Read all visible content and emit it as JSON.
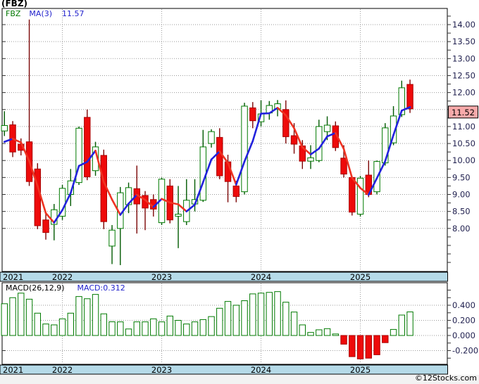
{
  "title": "(FBZ)",
  "legend": {
    "symbol": "FBZ",
    "ma_label": "MA(3)",
    "ma_value": "11.57"
  },
  "price_axis": {
    "labels": [
      "14.00",
      "13.50",
      "13.00",
      "12.50",
      "12.00",
      "11.50",
      "11.00",
      "10.50",
      "10.00",
      "9.50",
      "9.00",
      "8.50",
      "8.00"
    ],
    "last_price": "11.52"
  },
  "macd_panel": {
    "params_label": "MACD(26,12,9)",
    "value_label": "MACD:0.312",
    "axis_labels": [
      "0.400",
      "0.200",
      "0.000",
      "-0.200"
    ]
  },
  "x_axis": {
    "years": [
      "2021",
      "2022",
      "2023",
      "2024",
      "2025"
    ]
  },
  "watermark": "©12Stocks.com",
  "colors": {
    "up_body": "#ffffff",
    "up_border": "#007a00",
    "up_wick": "#005a00",
    "down_body": "#ee0a0a",
    "down_border": "#aa0000",
    "down_wick": "#7c0606",
    "ma_up": "#2222dd",
    "ma_down": "#ee3322",
    "band": "#b5dae8",
    "grid": "#9a9a9a",
    "frame": "#000000",
    "axis_text": "#1f1f4e",
    "year_text": "#000000",
    "last_price_fill": "#f8aaaa",
    "bottom_strip": "#f2f2f2",
    "macd_pos_body": "#ffffff",
    "macd_pos_border": "#007a00",
    "macd_neg_body": "#ee0a0a",
    "macd_neg_border": "#aa0000"
  },
  "chart_data": [
    {
      "type": "candlestick",
      "title": "FBZ monthly candlesticks with MA(3)",
      "timeframe": "monthly",
      "candle_format": [
        "month",
        "open",
        "high",
        "low",
        "close"
      ],
      "ylim": [
        6.9,
        14.45
      ],
      "y_tick_step": 0.5,
      "grid": true,
      "legend_position": "top-left",
      "candles": [
        [
          "2021-06",
          10.87,
          11.45,
          10.72,
          11.03
        ],
        [
          "2021-07",
          11.05,
          11.16,
          10.1,
          10.25
        ],
        [
          "2021-08",
          10.48,
          10.65,
          10.15,
          10.3
        ],
        [
          "2021-09",
          10.55,
          14.15,
          9.25,
          9.38
        ],
        [
          "2021-10",
          9.75,
          9.92,
          7.98,
          8.08
        ],
        [
          "2021-11",
          8.25,
          8.45,
          7.67,
          7.88
        ],
        [
          "2021-12",
          8.12,
          8.72,
          7.65,
          8.55
        ],
        [
          "2022-01",
          8.36,
          9.28,
          8.25,
          9.18
        ],
        [
          "2022-02",
          9.0,
          9.75,
          8.66,
          9.4
        ],
        [
          "2022-03",
          9.35,
          11.0,
          9.28,
          10.95
        ],
        [
          "2022-04",
          11.27,
          11.5,
          9.42,
          9.52
        ],
        [
          "2022-05",
          9.7,
          10.55,
          9.55,
          10.4
        ],
        [
          "2022-06",
          10.15,
          10.32,
          7.98,
          8.2
        ],
        [
          "2022-07",
          7.48,
          8.1,
          6.95,
          7.95
        ],
        [
          "2022-08",
          8.0,
          9.22,
          6.92,
          9.05
        ],
        [
          "2022-09",
          8.7,
          9.35,
          8.45,
          9.2
        ],
        [
          "2022-10",
          9.17,
          9.85,
          7.85,
          8.72
        ],
        [
          "2022-11",
          8.97,
          9.1,
          7.95,
          8.6
        ],
        [
          "2022-12",
          8.85,
          9.0,
          8.35,
          8.57
        ],
        [
          "2023-01",
          8.17,
          9.5,
          8.1,
          9.45
        ],
        [
          "2023-02",
          9.25,
          9.45,
          8.15,
          8.25
        ],
        [
          "2023-03",
          8.36,
          9.25,
          7.42,
          8.42
        ],
        [
          "2023-04",
          8.2,
          9.45,
          8.1,
          8.83
        ],
        [
          "2023-05",
          8.72,
          9.45,
          8.5,
          8.85
        ],
        [
          "2023-06",
          8.83,
          10.9,
          8.78,
          10.4
        ],
        [
          "2023-07",
          10.5,
          10.92,
          10.38,
          10.85
        ],
        [
          "2023-08",
          10.68,
          10.95,
          9.45,
          9.55
        ],
        [
          "2023-09",
          9.96,
          10.17,
          8.77,
          9.38
        ],
        [
          "2023-10",
          9.25,
          9.4,
          8.77,
          8.94
        ],
        [
          "2023-11",
          9.08,
          11.7,
          9.0,
          11.6
        ],
        [
          "2023-12",
          11.55,
          11.72,
          10.95,
          11.17
        ],
        [
          "2024-01",
          11.14,
          11.77,
          11.0,
          11.37
        ],
        [
          "2024-02",
          11.4,
          11.75,
          11.2,
          11.62
        ],
        [
          "2024-03",
          11.52,
          11.78,
          11.3,
          11.67
        ],
        [
          "2024-04",
          11.5,
          11.77,
          10.5,
          10.7
        ],
        [
          "2024-05",
          10.73,
          11.1,
          10.2,
          10.48
        ],
        [
          "2024-06",
          10.43,
          10.6,
          9.75,
          9.98
        ],
        [
          "2024-07",
          9.98,
          10.45,
          9.75,
          10.08
        ],
        [
          "2024-08",
          10.0,
          11.2,
          9.95,
          11.0
        ],
        [
          "2024-09",
          10.85,
          11.3,
          10.6,
          11.04
        ],
        [
          "2024-10",
          11.02,
          11.15,
          10.28,
          10.38
        ],
        [
          "2024-11",
          10.07,
          10.45,
          9.5,
          9.6
        ],
        [
          "2024-12",
          9.5,
          9.55,
          8.38,
          8.48
        ],
        [
          "2025-01",
          8.42,
          9.55,
          8.35,
          9.48
        ],
        [
          "2025-02",
          9.57,
          10.0,
          8.92,
          9.0
        ],
        [
          "2025-03",
          9.08,
          10.0,
          9.0,
          9.97
        ],
        [
          "2025-04",
          9.93,
          11.1,
          9.85,
          10.96
        ],
        [
          "2025-05",
          10.52,
          11.6,
          10.45,
          11.31
        ],
        [
          "2025-06",
          11.35,
          12.35,
          11.28,
          12.14
        ],
        [
          "2025-07",
          12.24,
          12.38,
          11.4,
          11.52
        ]
      ],
      "ma3": [
        10.55,
        10.64,
        10.53,
        9.98,
        9.25,
        8.45,
        8.17,
        8.54,
        9.04,
        9.84,
        9.96,
        10.29,
        9.37,
        8.85,
        8.4,
        8.73,
        8.99,
        8.84,
        8.63,
        8.87,
        8.76,
        8.71,
        8.5,
        8.7,
        9.36,
        10.03,
        10.27,
        9.93,
        9.29,
        9.97,
        10.57,
        11.38,
        11.39,
        11.55,
        11.33,
        10.95,
        10.39,
        10.18,
        10.35,
        10.71,
        10.81,
        10.34,
        9.49,
        9.19,
        8.99,
        9.48,
        9.98,
        10.75,
        11.47,
        11.57
      ],
      "ma_color_rule": "blue when rising, red when falling"
    },
    {
      "type": "bar",
      "title": "MACD(26,12,9) histogram",
      "x_start": "2021-06",
      "x_interval": "months",
      "ylim": [
        -0.38,
        0.66
      ],
      "current_value": 0.312,
      "values": [
        0.42,
        0.5,
        0.56,
        0.48,
        0.295,
        0.152,
        0.14,
        0.22,
        0.295,
        0.515,
        0.486,
        0.543,
        0.286,
        0.181,
        0.18,
        0.086,
        0.18,
        0.18,
        0.22,
        0.18,
        0.257,
        0.2,
        0.152,
        0.18,
        0.21,
        0.25,
        0.36,
        0.45,
        0.4,
        0.46,
        0.55,
        0.56,
        0.57,
        0.58,
        0.44,
        0.31,
        0.14,
        0.04,
        0.075,
        0.09,
        0.02,
        -0.115,
        -0.28,
        -0.31,
        -0.3,
        -0.255,
        -0.095,
        0.08,
        0.27,
        0.312
      ]
    }
  ]
}
